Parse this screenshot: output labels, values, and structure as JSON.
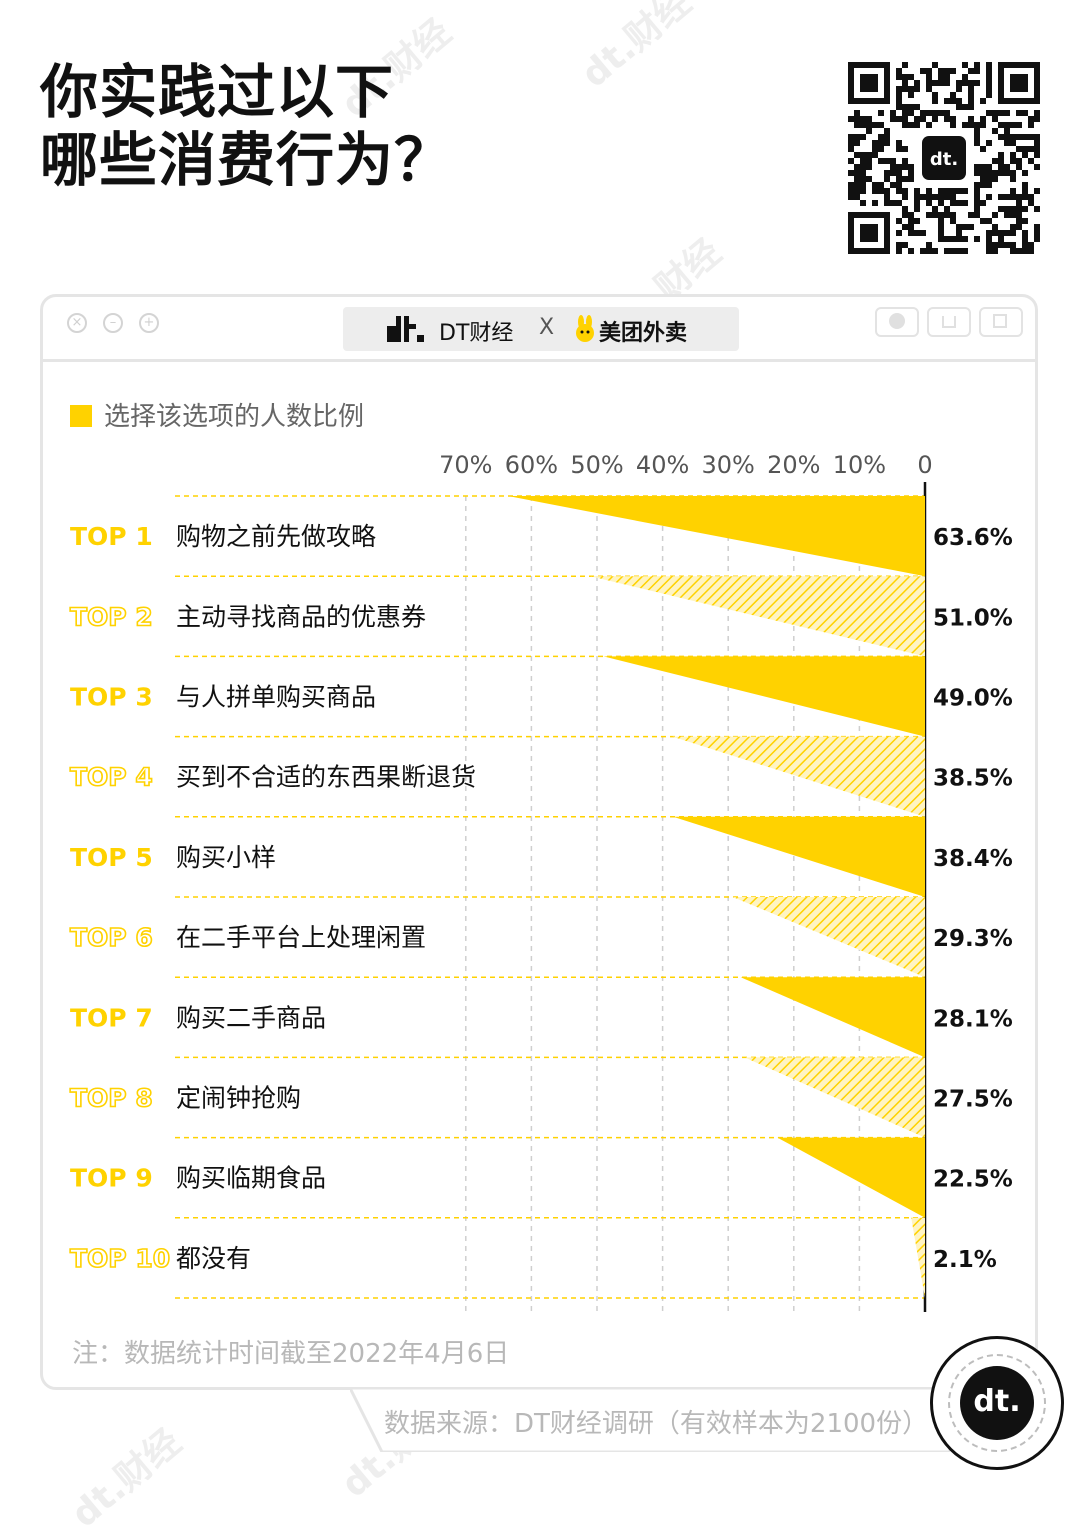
{
  "header": {
    "title_line1": "你实践过以下",
    "title_line2": "哪些消费行为？"
  },
  "qr_code": {
    "center_logo": "dt."
  },
  "window": {
    "brand_left": "DT财经",
    "separator": "X",
    "brand_right": "美团外卖"
  },
  "legend": {
    "label": "选择该选项的人数比例"
  },
  "chart_data": {
    "type": "bar",
    "orientation": "horizontal-right-aligned",
    "categories": [
      "购物之前先做攻略",
      "主动寻找商品的优惠券",
      "与人拼单购买商品",
      "买到不合适的东西果断退货",
      "购买小样",
      "在二手平台上处理闲置",
      "购买二手商品",
      "定闹钟抢购",
      "购买临期食品",
      "都没有"
    ],
    "ranks": [
      "TOP 1",
      "TOP 2",
      "TOP 3",
      "TOP 4",
      "TOP 5",
      "TOP 6",
      "TOP 7",
      "TOP 8",
      "TOP 9",
      "TOP 10"
    ],
    "values": [
      63.6,
      51.0,
      49.0,
      38.5,
      38.4,
      29.3,
      28.1,
      27.5,
      22.5,
      2.1
    ],
    "value_labels": [
      "63.6%",
      "51.0%",
      "49.0%",
      "38.5%",
      "38.4%",
      "29.3%",
      "28.1%",
      "27.5%",
      "22.5%",
      "2.1%"
    ],
    "x_ticks": [
      "70%",
      "60%",
      "50%",
      "40%",
      "30%",
      "20%",
      "10%",
      "0"
    ],
    "xlim": [
      0,
      70
    ],
    "fill_styles": [
      "solid",
      "hatched",
      "solid",
      "hatched",
      "solid",
      "hatched",
      "solid",
      "hatched",
      "solid",
      "hatched"
    ],
    "bar_color": "#ffd200",
    "grid": true
  },
  "note": "注：数据统计时间截至2022年4月6日",
  "source": "数据来源：DT财经调研（有效样本为2100份）",
  "logo": {
    "text": "dt",
    "dot": "."
  },
  "watermark_text": "dt.财经",
  "colors": {
    "accent": "#ffd200",
    "text": "#111111",
    "muted": "#b8b8b8"
  }
}
